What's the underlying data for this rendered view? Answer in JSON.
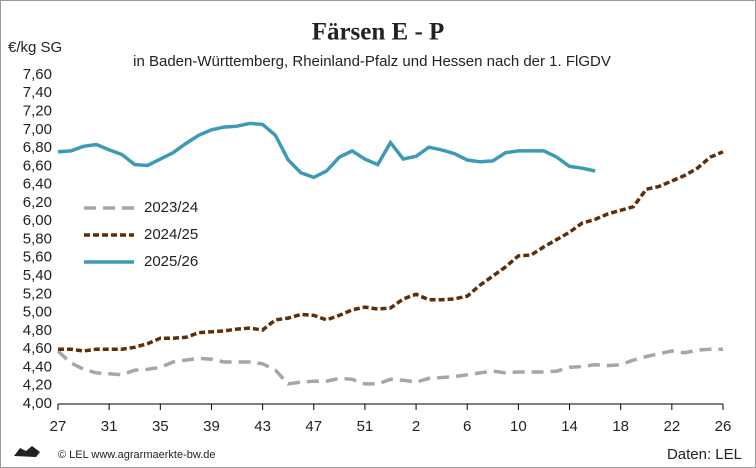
{
  "chart_data": {
    "type": "line",
    "title": "Färsen E - P",
    "subtitle": "in Baden-Württemberg, Rheinland-Pfalz und Hessen nach der 1. FlGDV",
    "y_label": "€/kg SG",
    "source_left": "© LEL www.agrarmaerkte-bw.de",
    "source_right": "Daten: LEL",
    "categories": [
      "27",
      null,
      null,
      null,
      "31",
      null,
      null,
      null,
      "35",
      null,
      null,
      null,
      "39",
      null,
      null,
      null,
      "43",
      null,
      null,
      null,
      "47",
      null,
      null,
      null,
      "51",
      null,
      null,
      null,
      "2",
      null,
      null,
      null,
      "6",
      null,
      null,
      null,
      "10",
      null,
      null,
      null,
      "14",
      null,
      null,
      null,
      "18",
      null,
      null,
      null,
      "22",
      null,
      null,
      null,
      "26"
    ],
    "ylim": [
      4.0,
      7.6
    ],
    "yticks": [
      {
        "value": 4.0,
        "label": "4,00"
      },
      {
        "value": 4.2,
        "label": "4,20"
      },
      {
        "value": 4.4,
        "label": "4,40"
      },
      {
        "value": 4.6,
        "label": "4,60"
      },
      {
        "value": 4.8,
        "label": "4,80"
      },
      {
        "value": 5.0,
        "label": "5,00"
      },
      {
        "value": 5.2,
        "label": "5,20"
      },
      {
        "value": 5.4,
        "label": "5,40"
      },
      {
        "value": 5.6,
        "label": "5,60"
      },
      {
        "value": 5.8,
        "label": "5,80"
      },
      {
        "value": 6.0,
        "label": "6,00"
      },
      {
        "value": 6.2,
        "label": "6,20"
      },
      {
        "value": 6.4,
        "label": "6,40"
      },
      {
        "value": 6.6,
        "label": "6,60"
      },
      {
        "value": 6.8,
        "label": "6,80"
      },
      {
        "value": 7.0,
        "label": "7,00"
      },
      {
        "value": 7.2,
        "label": "7,20"
      },
      {
        "value": 7.4,
        "label": "7,40"
      },
      {
        "value": 7.6,
        "label": "7,60"
      }
    ],
    "grid": false,
    "legend": "left",
    "series": [
      {
        "name": "2023/24",
        "color": "#a6a6a6",
        "style": "dashed",
        "values": [
          4.58,
          4.45,
          4.38,
          4.34,
          4.33,
          4.32,
          4.37,
          4.38,
          4.4,
          4.46,
          4.48,
          4.5,
          4.49,
          4.46,
          4.46,
          4.46,
          4.44,
          4.37,
          4.22,
          4.24,
          4.25,
          4.25,
          4.28,
          4.27,
          4.22,
          4.22,
          4.27,
          4.26,
          4.24,
          4.28,
          4.29,
          4.3,
          4.32,
          4.34,
          4.36,
          4.34,
          4.35,
          4.35,
          4.35,
          4.36,
          4.4,
          4.41,
          4.43,
          4.42,
          4.43,
          4.48,
          4.52,
          4.55,
          4.58,
          4.56,
          4.59,
          4.6,
          4.6
        ]
      },
      {
        "name": "2024/25",
        "color": "#5c2e0a",
        "style": "dotted",
        "values": [
          4.6,
          4.6,
          4.58,
          4.6,
          4.6,
          4.6,
          4.62,
          4.66,
          4.72,
          4.72,
          4.73,
          4.78,
          4.79,
          4.8,
          4.82,
          4.83,
          4.81,
          4.92,
          4.94,
          4.98,
          4.97,
          4.92,
          4.97,
          5.03,
          5.06,
          5.04,
          5.05,
          5.15,
          5.2,
          5.14,
          5.14,
          5.15,
          5.18,
          5.3,
          5.4,
          5.5,
          5.62,
          5.63,
          5.72,
          5.8,
          5.88,
          5.98,
          6.02,
          6.08,
          6.12,
          6.16,
          6.35,
          6.38,
          6.44,
          6.5,
          6.58,
          6.7,
          6.76
        ]
      },
      {
        "name": "2025/26",
        "color": "#3b9bb5",
        "style": "solid",
        "values": [
          6.76,
          6.77,
          6.82,
          6.84,
          6.78,
          6.73,
          6.62,
          6.61,
          6.68,
          6.75,
          6.85,
          6.94,
          7.0,
          7.03,
          7.04,
          7.07,
          7.06,
          6.94,
          6.67,
          6.53,
          6.48,
          6.55,
          6.7,
          6.77,
          6.68,
          6.62,
          6.86,
          6.68,
          6.71,
          6.81,
          6.78,
          6.74,
          6.67,
          6.65,
          6.66,
          6.75,
          6.77,
          6.77,
          6.77,
          6.7,
          6.6,
          6.58,
          6.55,
          null,
          null,
          null,
          null,
          null,
          null,
          null,
          null,
          null,
          null
        ]
      }
    ]
  }
}
